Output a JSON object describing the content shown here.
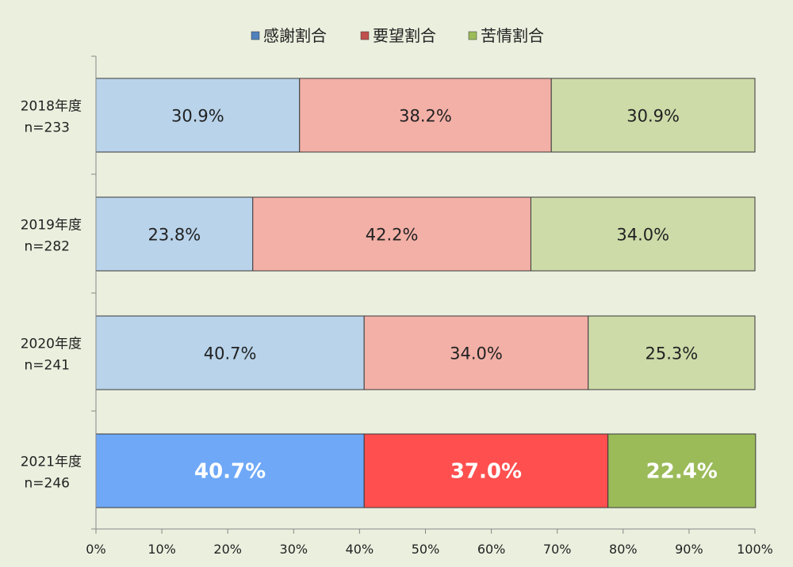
{
  "chart_data": {
    "type": "bar",
    "orientation": "horizontal",
    "stacked": true,
    "percent_stacked": true,
    "categories": [
      {
        "label_line1": "2018年度",
        "label_line2": "n=233"
      },
      {
        "label_line1": "2019年度",
        "label_line2": "n=282"
      },
      {
        "label_line1": "2020年度",
        "label_line2": "n=241"
      },
      {
        "label_line1": "2021年度",
        "label_line2": "n=246"
      }
    ],
    "series": [
      {
        "name": "感謝割合",
        "values": [
          30.9,
          23.8,
          40.7,
          40.7
        ],
        "color": "#b8d3ea",
        "highlight_color": "#6fa8f7",
        "legend_color": "#4f81bd"
      },
      {
        "name": "要望割合",
        "values": [
          38.2,
          42.2,
          34.0,
          37.0
        ],
        "color": "#f3b0a7",
        "highlight_color": "#ff4f4f",
        "legend_color": "#c0504d"
      },
      {
        "name": "苦情割合",
        "values": [
          30.9,
          34.0,
          25.3,
          22.4
        ],
        "color": "#cddba8",
        "highlight_color": "#9bbb59",
        "legend_color": "#9bbb59"
      }
    ],
    "data_labels": [
      [
        "30.9%",
        "38.2%",
        "30.9%"
      ],
      [
        "23.8%",
        "42.2%",
        "34.0%"
      ],
      [
        "40.7%",
        "34.0%",
        "25.3%"
      ],
      [
        "40.7%",
        "37.0%",
        "22.4%"
      ]
    ],
    "highlighted_category_index": 3,
    "xlim": [
      0,
      100
    ],
    "xticks": [
      "0%",
      "10%",
      "20%",
      "30%",
      "40%",
      "50%",
      "60%",
      "70%",
      "80%",
      "90%",
      "100%"
    ],
    "legend_position": "top",
    "grid": false,
    "title": "",
    "xlabel": "",
    "ylabel": ""
  }
}
